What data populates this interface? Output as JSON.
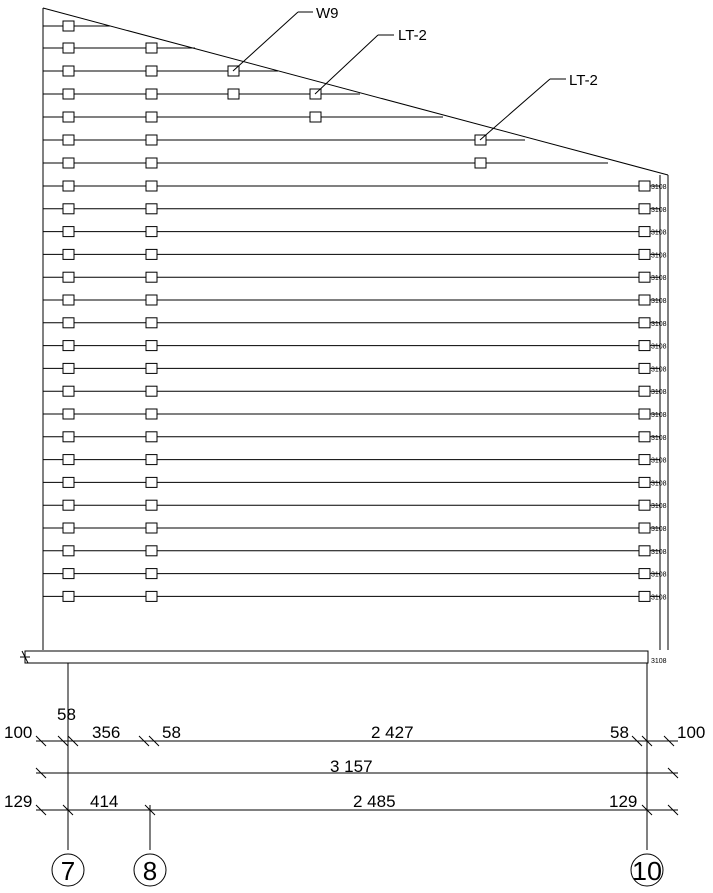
{
  "callouts": [
    {
      "id": "w9",
      "label": "W9"
    },
    {
      "id": "lt2-a",
      "label": "LT-2"
    },
    {
      "id": "lt2-b",
      "label": "LT-2"
    }
  ],
  "row_tag": "3108",
  "row_count": 26,
  "base_tag": "3108",
  "dims": {
    "row1": [
      "100",
      "58",
      "356",
      "58",
      "2 427",
      "58",
      "100"
    ],
    "total": "3 157",
    "row3": [
      "129",
      "414",
      "2 485",
      "129"
    ]
  },
  "axes": [
    {
      "id": "axis-7",
      "label": "7"
    },
    {
      "id": "axis-8",
      "label": "8"
    },
    {
      "id": "axis-10",
      "label": "10"
    }
  ]
}
